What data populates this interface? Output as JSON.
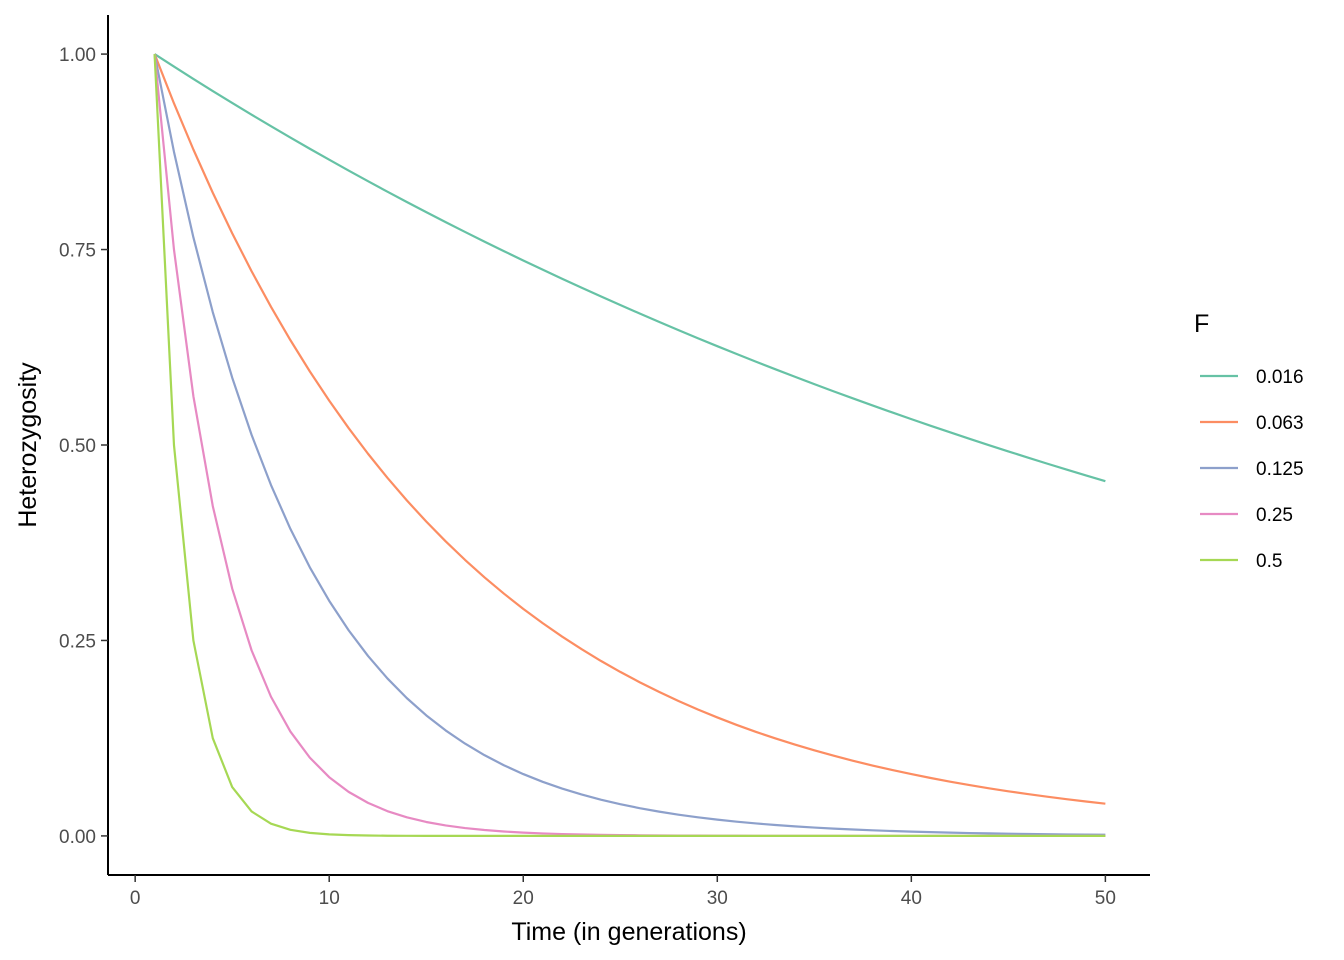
{
  "chart_data": {
    "type": "line",
    "title": "",
    "xlabel": "Time (in generations)",
    "ylabel": "Heterozygosity",
    "xlim": [
      -1.4,
      52.3
    ],
    "ylim": [
      -0.05,
      1.05
    ],
    "xticks": [
      0,
      10,
      20,
      30,
      40,
      50
    ],
    "xtick_labels": [
      "0",
      "10",
      "20",
      "30",
      "40",
      "50"
    ],
    "yticks": [
      0,
      0.25,
      0.5,
      0.75,
      1
    ],
    "ytick_labels": [
      "0.00",
      "0.25",
      "0.50",
      "0.75",
      "1.00"
    ],
    "grid": false,
    "legend": {
      "title": "F",
      "position": "right"
    },
    "x": [
      1,
      2,
      3,
      4,
      5,
      6,
      7,
      8,
      9,
      10,
      11,
      12,
      13,
      14,
      15,
      16,
      17,
      18,
      19,
      20,
      21,
      22,
      23,
      24,
      25,
      26,
      27,
      28,
      29,
      30,
      31,
      32,
      33,
      34,
      35,
      36,
      37,
      38,
      39,
      40,
      41,
      42,
      43,
      44,
      45,
      46,
      47,
      48,
      49,
      50
    ],
    "series": [
      {
        "name": "0.016",
        "color": "#66c2a5",
        "f": 0.016
      },
      {
        "name": "0.063",
        "color": "#fc8d62",
        "f": 0.063
      },
      {
        "name": "0.125",
        "color": "#8da0cb",
        "f": 0.125
      },
      {
        "name": "0.25",
        "color": "#e78ac3",
        "f": 0.25
      },
      {
        "name": "0.5",
        "color": "#a6d854",
        "f": 0.5
      }
    ]
  }
}
